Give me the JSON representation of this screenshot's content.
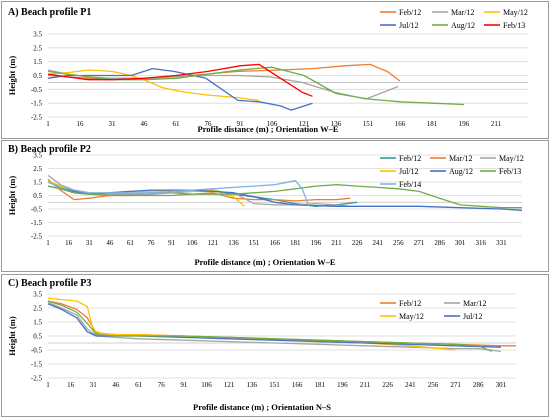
{
  "chart_data": [
    {
      "type": "line",
      "title": "A) Beach profile P1",
      "xlabel": "Profile distance (m) ; Orientation W–E",
      "ylabel": "Height (m)",
      "ylim": [
        -2.5,
        3.5
      ],
      "yticks": [
        "3.5",
        "2.5",
        "1.5",
        "0.5",
        "-0.5",
        "-1.5",
        "-2.5"
      ],
      "xlim": [
        1,
        226
      ],
      "xticks": [
        "1",
        "16",
        "31",
        "46",
        "61",
        "76",
        "91",
        "106",
        "121",
        "136",
        "151",
        "166",
        "181",
        "196",
        "211"
      ],
      "legend": "top-right",
      "series": [
        {
          "name": "Feb/12",
          "color": "#ED7D31",
          "x": [
            1,
            10,
            20,
            31,
            45,
            60,
            75,
            90,
            110,
            125,
            140,
            152,
            160,
            166
          ],
          "y": [
            0.5,
            0.4,
            0.3,
            0.3,
            0.3,
            0.4,
            0.6,
            0.8,
            0.9,
            1.0,
            1.2,
            1.3,
            0.8,
            0.1
          ]
        },
        {
          "name": "Mar/12",
          "color": "#A5A5A5",
          "x": [
            1,
            10,
            20,
            31,
            45,
            60,
            75,
            90,
            105,
            120,
            135,
            150,
            165
          ],
          "y": [
            0.9,
            0.6,
            0.4,
            0.3,
            0.3,
            0.4,
            0.5,
            0.5,
            0.4,
            0.0,
            -0.7,
            -1.2,
            -0.3
          ]
        },
        {
          "name": "May/12",
          "color": "#FFC000",
          "x": [
            1,
            10,
            20,
            31,
            40,
            46,
            55,
            65,
            75,
            90,
            100
          ],
          "y": [
            0.6,
            0.7,
            0.9,
            0.8,
            0.5,
            0.2,
            -0.4,
            -0.7,
            -0.9,
            -1.1,
            -1.3
          ]
        },
        {
          "name": "Jul/12",
          "color": "#4472C4",
          "x": [
            1,
            10,
            20,
            31,
            40,
            50,
            60,
            75,
            90,
            100,
            110,
            115,
            125
          ],
          "y": [
            0.3,
            0.5,
            0.5,
            0.5,
            0.5,
            1.0,
            0.8,
            0.3,
            -1.3,
            -1.4,
            -1.7,
            -2.0,
            -1.5
          ]
        },
        {
          "name": "Aug/12",
          "color": "#70AD47",
          "x": [
            1,
            10,
            20,
            31,
            46,
            61,
            76,
            91,
            106,
            121,
            136,
            151,
            166,
            181,
            196
          ],
          "y": [
            0.8,
            0.6,
            0.4,
            0.2,
            0.2,
            0.3,
            0.6,
            0.9,
            1.1,
            0.5,
            -0.8,
            -1.2,
            -1.4,
            -1.5,
            -1.6
          ]
        },
        {
          "name": "Feb/13",
          "color": "#FF0000",
          "x": [
            1,
            10,
            20,
            31,
            46,
            61,
            76,
            91,
            100,
            110,
            120,
            125
          ],
          "y": [
            0.6,
            0.4,
            0.2,
            0.2,
            0.3,
            0.5,
            0.8,
            1.2,
            1.3,
            0.3,
            -0.7,
            -1.0
          ]
        }
      ]
    },
    {
      "type": "line",
      "title": "B) Beach profile P2",
      "xlabel": "Profile distance (m) ; Orientation W–E",
      "ylabel": "Height (m)",
      "ylim": [
        -2.5,
        3.5
      ],
      "yticks": [
        "3.5",
        "2.5",
        "1.5",
        "0.5",
        "-0.5",
        "-1.5",
        "-2.5"
      ],
      "xlim": [
        1,
        346
      ],
      "xticks": [
        "1",
        "16",
        "31",
        "46",
        "61",
        "76",
        "91",
        "106",
        "121",
        "136",
        "151",
        "166",
        "181",
        "196",
        "211",
        "226",
        "241",
        "256",
        "271",
        "286",
        "301",
        "316",
        "331"
      ],
      "legend": "top-right",
      "series": [
        {
          "name": "Feb/12",
          "color": "#2E9AA8",
          "x": [
            1,
            10,
            20,
            31,
            46,
            61,
            76,
            91,
            106,
            121,
            136,
            151,
            166,
            181,
            196,
            211,
            226
          ],
          "y": [
            1.2,
            1.0,
            0.7,
            0.6,
            0.6,
            0.6,
            0.7,
            0.7,
            0.8,
            0.9,
            0.6,
            0.4,
            0.2,
            -0.1,
            -0.3,
            -0.2,
            0.0
          ]
        },
        {
          "name": "Mar/12",
          "color": "#ED7D31",
          "x": [
            1,
            10,
            20,
            31,
            46,
            61,
            76,
            91,
            106,
            121,
            136,
            151,
            166,
            181,
            196,
            211,
            221
          ],
          "y": [
            1.7,
            0.9,
            0.2,
            0.3,
            0.5,
            0.5,
            0.6,
            0.7,
            0.6,
            0.7,
            0.3,
            0.2,
            0.2,
            0.1,
            0.2,
            0.2,
            0.3
          ]
        },
        {
          "name": "May/12",
          "color": "#A5A5A5",
          "x": [
            1,
            10,
            20,
            31,
            46,
            61,
            76,
            91,
            106,
            121,
            136,
            151,
            166,
            181,
            196,
            211,
            221
          ],
          "y": [
            2.0,
            1.3,
            0.9,
            0.7,
            0.6,
            0.6,
            0.6,
            0.7,
            0.8,
            0.8,
            0.7,
            -0.1,
            -0.2,
            -0.2,
            -0.1,
            -0.2,
            -0.3
          ]
        },
        {
          "name": "Jul/12",
          "color": "#FFC000",
          "x": [
            1,
            10,
            20,
            31,
            46,
            61,
            76,
            91,
            106,
            121,
            136,
            144
          ],
          "y": [
            1.6,
            1.2,
            0.8,
            0.6,
            0.7,
            0.8,
            0.8,
            0.9,
            0.8,
            0.9,
            0.4,
            -0.3
          ]
        },
        {
          "name": "Aug/12",
          "color": "#4472C4",
          "x": [
            1,
            10,
            20,
            31,
            46,
            61,
            76,
            91,
            106,
            121,
            136,
            151,
            166,
            181,
            211,
            241,
            271,
            301,
            331,
            346
          ],
          "y": [
            1.5,
            1.1,
            0.8,
            0.6,
            0.7,
            0.8,
            0.9,
            0.9,
            0.9,
            0.8,
            0.7,
            0.4,
            0.0,
            -0.2,
            -0.3,
            -0.3,
            -0.3,
            -0.4,
            -0.5,
            -0.6
          ]
        },
        {
          "name": "Feb/13",
          "color": "#70AD47",
          "x": [
            1,
            10,
            20,
            31,
            46,
            61,
            76,
            91,
            106,
            121,
            136,
            151,
            166,
            181,
            196,
            211,
            226,
            241,
            256,
            271,
            286,
            301,
            316,
            331,
            346
          ],
          "y": [
            1.2,
            1.0,
            0.7,
            0.6,
            0.5,
            0.5,
            0.5,
            0.5,
            0.6,
            0.6,
            0.6,
            0.7,
            0.8,
            1.0,
            1.2,
            1.3,
            1.2,
            1.1,
            1.0,
            0.8,
            0.3,
            -0.2,
            -0.3,
            -0.4,
            -0.4
          ]
        },
        {
          "name": "Feb/14",
          "color": "#7FB2E3",
          "x": [
            1,
            10,
            20,
            31,
            46,
            61,
            76,
            91,
            106,
            121,
            136,
            151,
            166,
            181,
            186,
            191
          ],
          "y": [
            1.5,
            1.1,
            0.9,
            0.7,
            0.7,
            0.7,
            0.7,
            0.8,
            0.9,
            1.0,
            1.1,
            1.2,
            1.3,
            1.6,
            1.0,
            -0.3
          ]
        }
      ]
    },
    {
      "type": "line",
      "title": "C) Beach profile P3",
      "xlabel": "Profile distance (m) ; Orientation N–S",
      "ylabel": "Height (m)",
      "ylim": [
        -2.5,
        3.5
      ],
      "yticks": [
        "3.5",
        "2.5",
        "1.5",
        "0.5",
        "-0.5",
        "-1.5",
        "-2.5"
      ],
      "xlim": [
        1,
        311
      ],
      "xticks": [
        "1",
        "16",
        "31",
        "46",
        "61",
        "76",
        "91",
        "106",
        "121",
        "136",
        "151",
        "166",
        "181",
        "196",
        "211",
        "226",
        "241",
        "256",
        "271",
        "286",
        "301"
      ],
      "legend": "top-right",
      "series": [
        {
          "name": "Feb/12",
          "color": "#ED7D31",
          "x": [
            1,
            10,
            20,
            27,
            33,
            46,
            61,
            91,
            121,
            151,
            181,
            211,
            241,
            271,
            301,
            311
          ],
          "y": [
            3.0,
            2.8,
            2.4,
            1.8,
            0.7,
            0.6,
            0.6,
            0.5,
            0.4,
            0.3,
            0.2,
            0.1,
            0.0,
            -0.1,
            -0.2,
            -0.2
          ]
        },
        {
          "name": "Mar/12",
          "color": "#A5A5A5",
          "x": [
            1,
            10,
            20,
            27,
            33,
            46,
            61,
            91,
            121,
            151,
            181,
            211,
            241,
            271,
            286,
            301
          ],
          "y": [
            2.9,
            2.5,
            2.0,
            1.0,
            0.5,
            0.4,
            0.3,
            0.2,
            0.1,
            0.0,
            -0.1,
            -0.2,
            -0.3,
            -0.4,
            -0.4,
            -0.6
          ]
        },
        {
          "name": "May/12",
          "color": "#FFC000",
          "x": [
            1,
            10,
            20,
            27,
            31,
            36,
            46,
            61,
            91,
            121,
            151,
            181,
            211,
            241,
            271
          ],
          "y": [
            3.2,
            3.1,
            3.0,
            2.6,
            0.9,
            0.7,
            0.6,
            0.6,
            0.5,
            0.4,
            0.3,
            0.1,
            0.0,
            -0.2,
            -0.5
          ]
        },
        {
          "name": "Jul/12",
          "color": "#4472C4",
          "x": [
            1,
            10,
            20,
            27,
            33,
            46,
            61,
            91,
            121,
            151,
            181,
            211,
            241,
            271,
            301
          ],
          "y": [
            2.8,
            2.4,
            1.8,
            0.8,
            0.5,
            0.5,
            0.5,
            0.4,
            0.3,
            0.2,
            0.1,
            0.0,
            -0.1,
            -0.2,
            -0.3
          ]
        },
        {
          "name": "",
          "color": "#70AD47",
          "x": [
            1,
            10,
            20,
            27,
            33,
            46,
            61,
            91,
            121,
            151,
            181,
            211,
            241,
            271,
            286,
            295
          ],
          "y": [
            3.0,
            2.7,
            2.2,
            1.4,
            0.6,
            0.5,
            0.5,
            0.5,
            0.4,
            0.3,
            0.2,
            0.1,
            0.0,
            -0.1,
            -0.2,
            -0.6
          ]
        }
      ]
    }
  ]
}
